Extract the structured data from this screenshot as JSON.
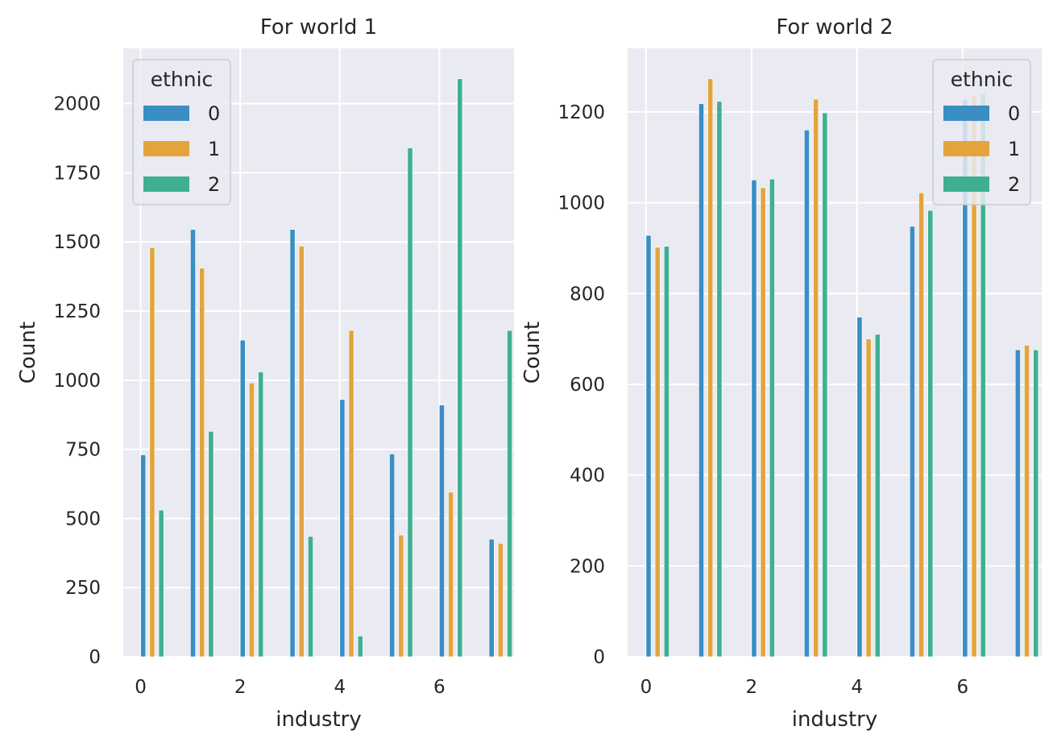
{
  "chart_data": [
    {
      "type": "bar",
      "title": "For world 1",
      "xlabel": "industry",
      "ylabel": "Count",
      "xlim": [
        -0.35,
        7.5
      ],
      "ylim": [
        0,
        2200
      ],
      "xticks": [
        0,
        2,
        4,
        6
      ],
      "yticks": [
        0,
        250,
        500,
        750,
        1000,
        1250,
        1500,
        1750,
        2000
      ],
      "grid": true,
      "legend": {
        "title": "ethnic",
        "placement": "top-left"
      },
      "categories": [
        0,
        1,
        2,
        3,
        4,
        5,
        6,
        7
      ],
      "series": [
        {
          "name": "0",
          "color": "#3a8ec4",
          "values": [
            730,
            1545,
            1145,
            1545,
            930,
            733,
            910,
            425
          ]
        },
        {
          "name": "1",
          "color": "#e3a43e",
          "values": [
            1480,
            1405,
            990,
            1485,
            1180,
            440,
            595,
            410
          ]
        },
        {
          "name": "2",
          "color": "#3eb091",
          "values": [
            530,
            815,
            1030,
            435,
            75,
            1840,
            2090,
            1180
          ]
        }
      ]
    },
    {
      "type": "bar",
      "title": "For world 2",
      "xlabel": "industry",
      "ylabel": "Count",
      "xlim": [
        -0.35,
        7.5
      ],
      "ylim": [
        0,
        1340
      ],
      "xticks": [
        0,
        2,
        4,
        6
      ],
      "yticks": [
        0,
        200,
        400,
        600,
        800,
        1000,
        1200
      ],
      "grid": true,
      "legend": {
        "title": "ethnic",
        "placement": "top-right"
      },
      "categories": [
        0,
        1,
        2,
        3,
        4,
        5,
        6,
        7
      ],
      "series": [
        {
          "name": "0",
          "color": "#3a8ec4",
          "values": [
            928,
            1218,
            1050,
            1160,
            748,
            948,
            1228,
            676
          ]
        },
        {
          "name": "1",
          "color": "#e3a43e",
          "values": [
            902,
            1273,
            1033,
            1228,
            700,
            1022,
            1236,
            686
          ]
        },
        {
          "name": "2",
          "color": "#3eb091",
          "values": [
            904,
            1223,
            1052,
            1198,
            710,
            983,
            1240,
            676
          ]
        }
      ]
    }
  ]
}
